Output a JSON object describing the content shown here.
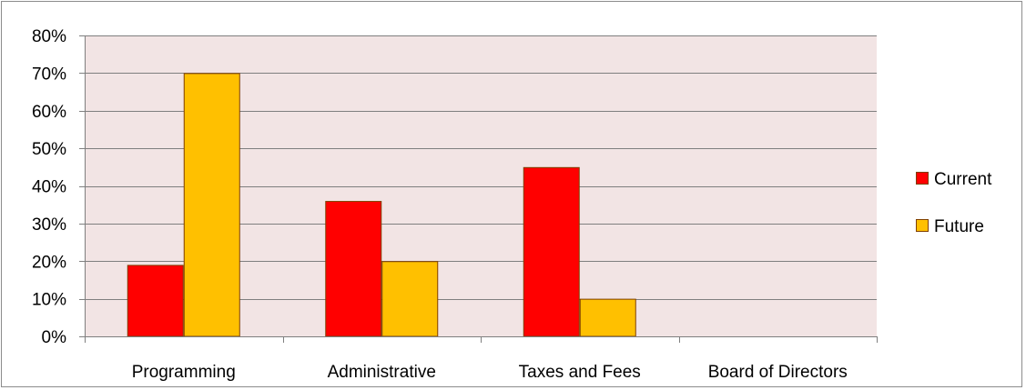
{
  "chart_data": {
    "type": "bar",
    "categories": [
      "Programming",
      "Administrative",
      "Taxes and Fees",
      "Board of Directors"
    ],
    "series": [
      {
        "name": "Current",
        "values": [
          0.19,
          0.36,
          0.45,
          0
        ],
        "color": "#ff0000"
      },
      {
        "name": "Future",
        "values": [
          0.7,
          0.2,
          0.1,
          0
        ],
        "color": "#ffc000"
      }
    ],
    "ylim": [
      0,
      0.8
    ],
    "yticks": [
      0,
      0.1,
      0.2,
      0.3,
      0.4,
      0.5,
      0.6,
      0.7,
      0.8
    ],
    "ytick_labels": [
      "0%",
      "10%",
      "20%",
      "30%",
      "40%",
      "50%",
      "60%",
      "70%",
      "80%"
    ],
    "grid": true,
    "legend_position": "right",
    "plot_background": "#f2e4e4",
    "bar_border_color": "#7f3f00",
    "title": "",
    "xlabel": "",
    "ylabel": ""
  }
}
